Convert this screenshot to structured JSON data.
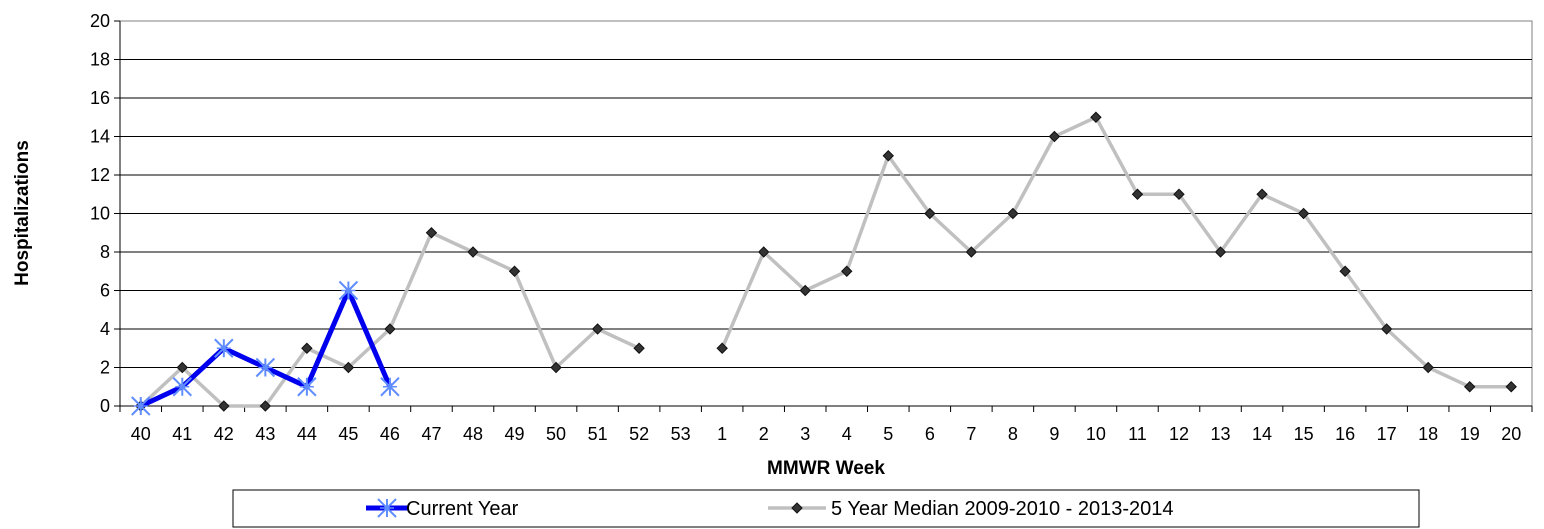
{
  "chart_data": {
    "type": "line",
    "xlabel": "MMWR Week",
    "ylabel": "Hospitalizations",
    "ylim": [
      0,
      20
    ],
    "yticks": [
      "0",
      "2",
      "4",
      "6",
      "8",
      "10",
      "12",
      "14",
      "16",
      "18",
      "20"
    ],
    "categories": [
      "40",
      "41",
      "42",
      "43",
      "44",
      "45",
      "46",
      "47",
      "48",
      "49",
      "50",
      "51",
      "52",
      "53",
      "1",
      "2",
      "3",
      "4",
      "5",
      "6",
      "7",
      "8",
      "9",
      "10",
      "11",
      "12",
      "13",
      "14",
      "15",
      "16",
      "17",
      "18",
      "19",
      "20"
    ],
    "grid": true,
    "legend_position": "bottom",
    "series": [
      {
        "name": "Current Year",
        "color": "#0000ee",
        "marker": "asterisk",
        "values": [
          0,
          1,
          3,
          2,
          1,
          6,
          1,
          null,
          null,
          null,
          null,
          null,
          null,
          null,
          null,
          null,
          null,
          null,
          null,
          null,
          null,
          null,
          null,
          null,
          null,
          null,
          null,
          null,
          null,
          null,
          null,
          null,
          null,
          null
        ]
      },
      {
        "name": "5 Year Median 2009-2010 - 2013-2014",
        "color": "#c0c0c0",
        "marker": "diamond",
        "values": [
          0,
          2,
          0,
          0,
          3,
          2,
          4,
          9,
          8,
          7,
          2,
          4,
          3,
          null,
          3,
          8,
          6,
          7,
          13,
          10,
          8,
          10,
          14,
          15,
          11,
          11,
          8,
          11,
          10,
          7,
          4,
          2,
          1,
          1
        ]
      }
    ]
  }
}
